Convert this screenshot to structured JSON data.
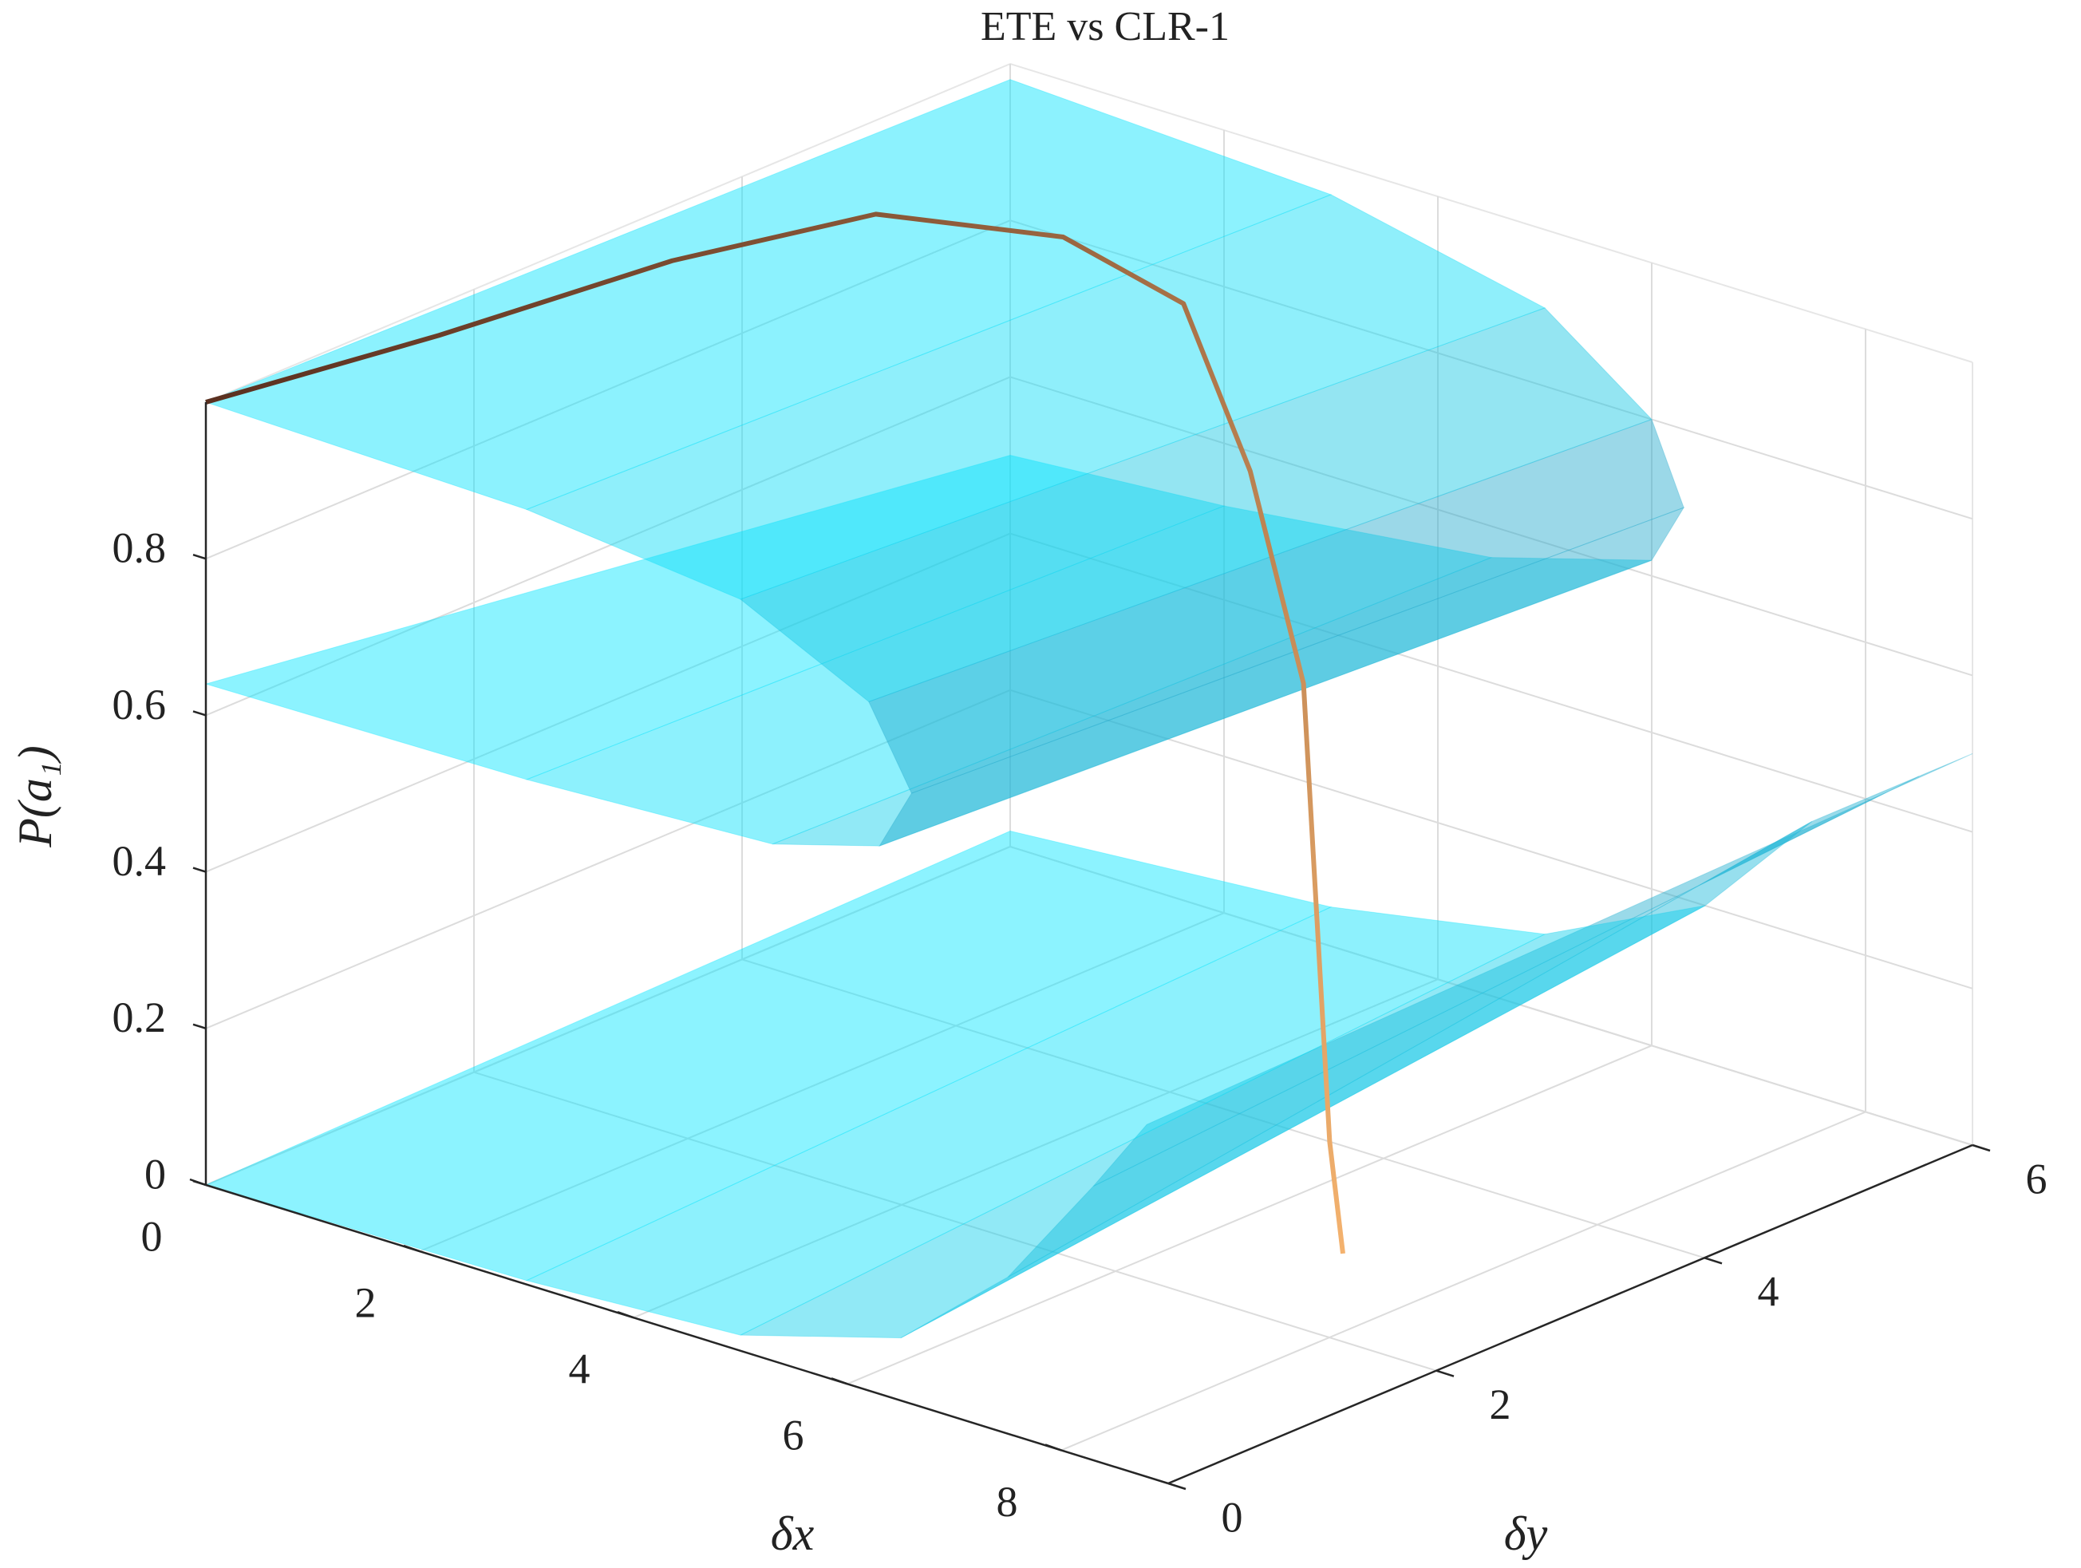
{
  "chart_data": {
    "type": "surface",
    "title": "ETE vs CLR-1",
    "xlabel": "δx",
    "ylabel": "δy",
    "zlabel": "P(a₁)",
    "xlim": [
      0,
      9
    ],
    "ylim": [
      0,
      6
    ],
    "zlim": [
      0,
      1
    ],
    "xticks": [
      0,
      2,
      4,
      6,
      8
    ],
    "yticks": [
      0,
      2,
      4,
      6
    ],
    "zticks": [
      0,
      0.2,
      0.4,
      0.6,
      0.8
    ],
    "grid": true,
    "color": "#00e5ff",
    "shade_color": "#2f8fb5",
    "sections": [
      {
        "y": 0,
        "x": [
          0,
          3,
          5,
          6.2,
          6.6,
          6.3,
          5.3,
          3,
          0,
          null,
          0,
          3,
          5,
          6.5,
          7.5,
          8.3,
          8.8
        ],
        "z": [
          1,
          0.99,
          0.96,
          0.88,
          0.78,
          0.7,
          0.66,
          0.645,
          0.64,
          null,
          0,
          0.005,
          0.02,
          0.08,
          0.2,
          0.35,
          0.45
        ]
      },
      {
        "y": 6,
        "x": [
          0,
          3,
          5,
          6,
          6.3,
          6,
          4.5,
          2,
          0,
          null,
          0,
          3,
          5,
          6.5,
          7.5,
          8.5,
          9
        ],
        "z": [
          0.98,
          0.96,
          0.9,
          0.8,
          0.7,
          0.62,
          0.56,
          0.52,
          0.5,
          null,
          0.02,
          0.05,
          0.1,
          0.2,
          0.35,
          0.45,
          0.5
        ]
      }
    ],
    "line": {
      "x": [
        0,
        0.3,
        0.6,
        1,
        2,
        3,
        4,
        5,
        6,
        7,
        7.5
      ],
      "y": [
        0,
        1.5,
        3,
        4.2,
        4.8,
        4.9,
        4.6,
        4.2,
        3.5,
        2.8,
        2.5
      ],
      "z": [
        1,
        0.99,
        0.99,
        0.98,
        0.95,
        0.9,
        0.75,
        0.55,
        0.35,
        0.15,
        0.05
      ],
      "colors": [
        "#5a3020",
        "#f4b26e"
      ]
    }
  }
}
